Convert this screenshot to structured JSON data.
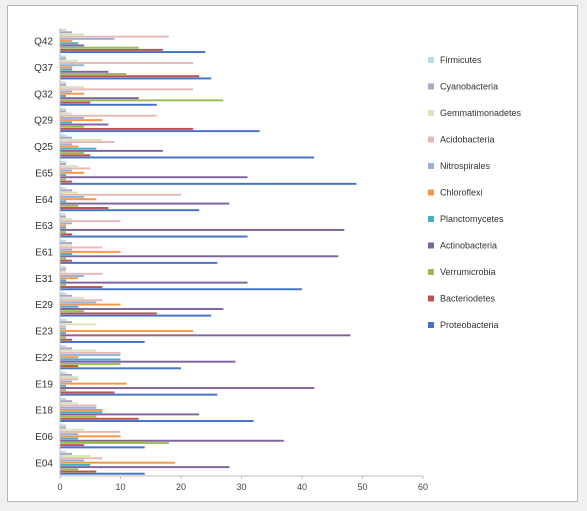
{
  "chart_data": {
    "type": "bar",
    "orientation": "horizontal",
    "categories": [
      "E04",
      "E06",
      "E18",
      "E19",
      "E22",
      "E23",
      "E29",
      "E31",
      "E61",
      "E63",
      "E64",
      "E65",
      "Q25",
      "Q29",
      "Q32",
      "Q37",
      "Q42"
    ],
    "series": [
      {
        "name": "Proteobacteria",
        "color": "#4472c4",
        "values": [
          14,
          14,
          32,
          26,
          20,
          14,
          25,
          40,
          26,
          31,
          23,
          49,
          42,
          33,
          16,
          25,
          24
        ]
      },
      {
        "name": "Bacteriodetes",
        "color": "#c0504d",
        "values": [
          6,
          4,
          13,
          9,
          3,
          2,
          16,
          7,
          2,
          2,
          8,
          2,
          5,
          22,
          5,
          23,
          17
        ]
      },
      {
        "name": "Verrumicrobia",
        "color": "#9bbb59",
        "values": [
          3,
          18,
          6,
          1,
          10,
          1,
          4,
          1,
          1,
          1,
          3,
          1,
          4,
          4,
          27,
          11,
          13
        ]
      },
      {
        "name": "Actinobacteria",
        "color": "#8064a2",
        "values": [
          28,
          37,
          23,
          42,
          29,
          48,
          27,
          31,
          46,
          47,
          28,
          31,
          17,
          8,
          13,
          8,
          4
        ]
      },
      {
        "name": "Planctomycetes",
        "color": "#4bacc6",
        "values": [
          5,
          3,
          7,
          1,
          10,
          1,
          3,
          1,
          2,
          1,
          1,
          1,
          6,
          2,
          1,
          2,
          3
        ]
      },
      {
        "name": "Chloroflexi",
        "color": "#f79646",
        "values": [
          19,
          10,
          7,
          11,
          3,
          22,
          10,
          3,
          10,
          1,
          6,
          4,
          3,
          7,
          4,
          2,
          2
        ]
      },
      {
        "name": "Nitrospirales",
        "color": "#95b3d7",
        "values": [
          4,
          3,
          6,
          2,
          10,
          1,
          6,
          4,
          2,
          2,
          4,
          2,
          2,
          4,
          2,
          4,
          9
        ]
      },
      {
        "name": "Acidobacteria",
        "color": "#e6b9b8",
        "values": [
          7,
          10,
          6,
          3,
          10,
          1,
          7,
          7,
          7,
          10,
          20,
          5,
          9,
          16,
          22,
          22,
          18
        ]
      },
      {
        "name": "Gemmatimonadetes",
        "color": "#d7e4bc",
        "values": [
          5,
          4,
          3,
          3,
          6,
          6,
          4,
          1,
          2,
          2,
          3,
          3,
          7,
          2,
          4,
          3,
          4
        ]
      },
      {
        "name": "Cyanobacteria",
        "color": "#b3a2c7",
        "values": [
          2,
          1,
          2,
          2,
          2,
          2,
          2,
          1,
          2,
          1,
          2,
          1,
          2,
          1,
          1,
          1,
          2
        ]
      },
      {
        "name": "Firmicutes",
        "color": "#b7dee8",
        "values": [
          1,
          1,
          1,
          1,
          1,
          1,
          1,
          1,
          1,
          1,
          1,
          1,
          1,
          1,
          1,
          1,
          1
        ]
      }
    ],
    "legend_order": [
      "Firmicutes",
      "Cyanobacteria",
      "Gemmatimonadetes",
      "Acidobacteria",
      "Nitrospirales",
      "Chloroflexi",
      "Planctomycetes",
      "Actinobacteria",
      "Verrumicrobia",
      "Bacteriodetes",
      "Proteobacteria"
    ],
    "xlim": [
      0,
      60
    ],
    "xticks": [
      0,
      10,
      20,
      30,
      40,
      50,
      60
    ],
    "grid": false,
    "legend_placement": "right",
    "title": "",
    "xlabel": "",
    "ylabel": ""
  }
}
